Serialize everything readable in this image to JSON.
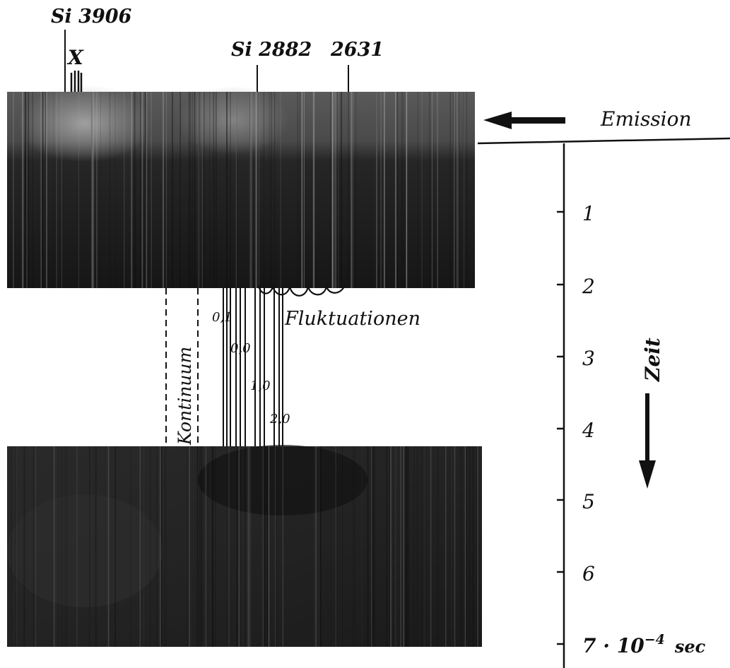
{
  "labels": {
    "line_si_3906": "Si 3906",
    "line_x": "X",
    "line_si_2882": "Si 2882",
    "line_2631": "2631",
    "emission": "Emission",
    "kontinuum": "Kontinuum",
    "fluktuationen": "Fluktuationen",
    "zeit": "Zeit",
    "band_0_1": "0,1",
    "band_0_0": "0,0",
    "band_1_0": "1,0",
    "band_2_0": "2,0"
  },
  "time_axis": {
    "ticks": [
      "1",
      "2",
      "3",
      "4",
      "5",
      "6",
      "7 · 10"
    ],
    "exponent": "−4",
    "unit": "sec"
  },
  "colors": {
    "ink": "#111111",
    "film_dark": "#141414",
    "film_mid": "#3a3a3a",
    "film_light": "#9a9a9a"
  }
}
